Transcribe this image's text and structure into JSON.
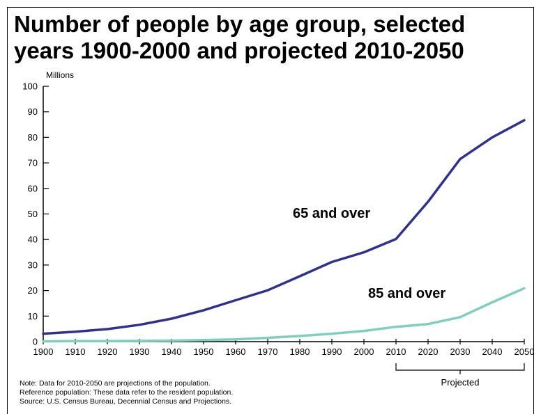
{
  "title_line1": "Number of people by age group, selected",
  "title_line2": "years 1900-2000 and projected 2010-2050",
  "notes": [
    "Note: Data for 2010-2050 are projections of the population.",
    "Reference population: These data refer to the resident population.",
    "Source: U.S. Census Bureau, Decennial Census and Projections."
  ],
  "chart_data": {
    "type": "line",
    "title": "Number of people by age group, selected years 1900-2000 and projected 2010-2050",
    "ylabel": "Millions",
    "xlabel": "",
    "x": [
      1900,
      1910,
      1920,
      1930,
      1940,
      1950,
      1960,
      1970,
      1980,
      1990,
      2000,
      2010,
      2020,
      2030,
      2040,
      2050
    ],
    "ylim": [
      0,
      100
    ],
    "xlim": [
      1900,
      2050
    ],
    "yticks": [
      0,
      10,
      20,
      30,
      40,
      50,
      60,
      70,
      80,
      90,
      100
    ],
    "xticks": [
      1900,
      1910,
      1920,
      1930,
      1940,
      1950,
      1960,
      1970,
      1980,
      1990,
      2000,
      2010,
      2020,
      2030,
      2040,
      2050
    ],
    "series": [
      {
        "name": "65 and over",
        "color": "#2e3192",
        "values": [
          3.1,
          3.9,
          4.9,
          6.6,
          9.0,
          12.3,
          16.2,
          20.1,
          25.6,
          31.2,
          35.0,
          40.2,
          54.8,
          71.5,
          80.0,
          86.7
        ]
      },
      {
        "name": "85 and over",
        "color": "#7fcfbf",
        "values": [
          0.1,
          0.2,
          0.2,
          0.3,
          0.4,
          0.6,
          0.9,
          1.5,
          2.2,
          3.1,
          4.2,
          5.8,
          6.9,
          9.6,
          15.4,
          20.9
        ]
      }
    ],
    "annotations": [
      {
        "text": "Projected",
        "bracket_from": 2010,
        "bracket_to": 2050
      }
    ],
    "grid": false
  }
}
